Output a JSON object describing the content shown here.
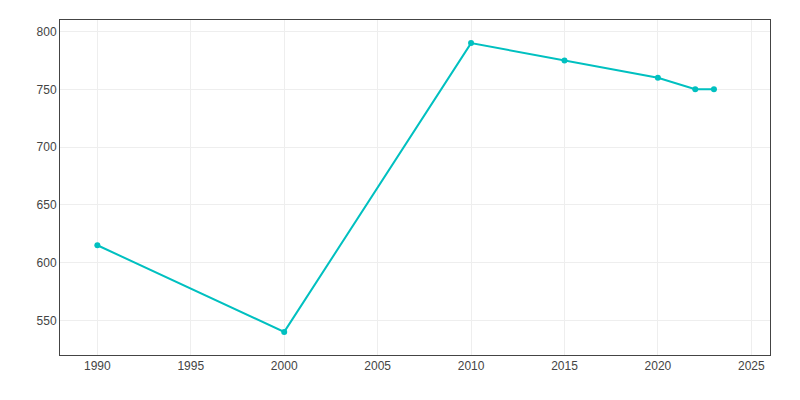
{
  "chart_data": {
    "type": "line",
    "x": [
      1990,
      2000,
      2010,
      2015,
      2020,
      2022,
      2023
    ],
    "values": [
      615,
      540,
      790,
      775,
      760,
      750,
      750
    ],
    "color": "#00C0C0",
    "marker": "circle",
    "line_style": "solid",
    "xlim": [
      1988,
      2026
    ],
    "xticks": [
      1990,
      1995,
      2000,
      2005,
      2010,
      2015,
      2020,
      2025
    ],
    "ylim": [
      520,
      810
    ],
    "yticks": [
      550,
      600,
      650,
      700,
      750,
      800
    ],
    "grid": true
  }
}
